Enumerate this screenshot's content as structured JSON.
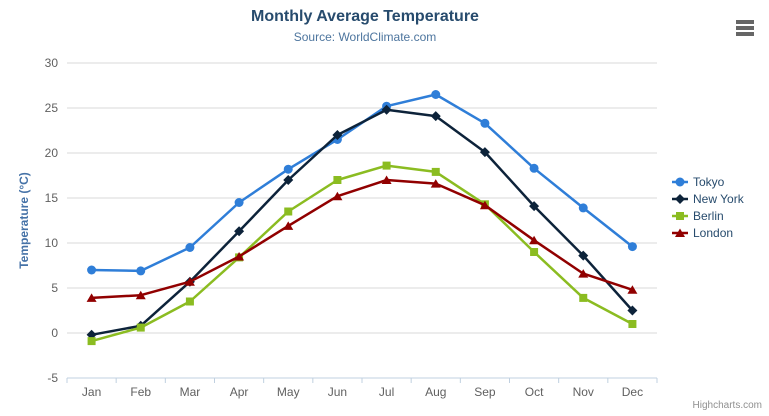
{
  "title": "Monthly Average Temperature",
  "subtitle": "Source: WorldClimate.com",
  "credits": "Highcharts.com",
  "chart_data": {
    "type": "line",
    "categories": [
      "Jan",
      "Feb",
      "Mar",
      "Apr",
      "May",
      "Jun",
      "Jul",
      "Aug",
      "Sep",
      "Oct",
      "Nov",
      "Dec"
    ],
    "series": [
      {
        "name": "Tokyo",
        "color": "#2f7ed8",
        "marker": "circle",
        "values": [
          7.0,
          6.9,
          9.5,
          14.5,
          18.2,
          21.5,
          25.2,
          26.5,
          23.3,
          18.3,
          13.9,
          9.6
        ]
      },
      {
        "name": "New York",
        "color": "#0d233a",
        "marker": "diamond",
        "values": [
          -0.2,
          0.8,
          5.7,
          11.3,
          17.0,
          22.0,
          24.8,
          24.1,
          20.1,
          14.1,
          8.6,
          2.5
        ]
      },
      {
        "name": "Berlin",
        "color": "#8bbc21",
        "marker": "square",
        "values": [
          -0.9,
          0.6,
          3.5,
          8.4,
          13.5,
          17.0,
          18.6,
          17.9,
          14.3,
          9.0,
          3.9,
          1.0
        ]
      },
      {
        "name": "London",
        "color": "#910000",
        "marker": "triangle",
        "values": [
          3.9,
          4.2,
          5.7,
          8.5,
          11.9,
          15.2,
          17.0,
          16.6,
          14.2,
          10.3,
          6.6,
          4.8
        ]
      }
    ],
    "title": "Monthly Average Temperature",
    "subtitle": "Source: WorldClimate.com",
    "xlabel": "",
    "ylabel": "Temperature (°C)",
    "ylim": [
      -5,
      30
    ],
    "ytick_step": 5,
    "grid": true,
    "legend_position": "right"
  },
  "colors": {
    "title": "#274b6d",
    "subtitle": "#4d759e",
    "axis_label": "#606060",
    "yaxis_title": "#4572a7",
    "grid": "#d8d8d8",
    "axis_line": "#c0d0e0",
    "legend_text": "#274b6d",
    "credits": "#909090",
    "menu_icon": "#666666"
  }
}
